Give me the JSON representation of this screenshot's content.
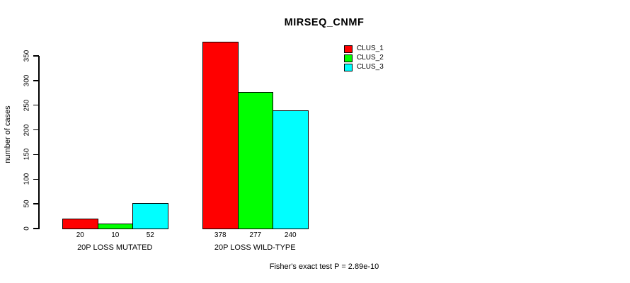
{
  "chart_data": {
    "type": "bar",
    "title": "MIRSEQ_CNMF",
    "ylabel": "number of cases",
    "xlabel": "",
    "categories": [
      "20P LOSS MUTATED",
      "20P LOSS WILD-TYPE"
    ],
    "series": [
      {
        "name": "CLUS_1",
        "color": "#ff0000",
        "values": [
          20,
          378
        ]
      },
      {
        "name": "CLUS_2",
        "color": "#00ff00",
        "values": [
          10,
          277
        ]
      },
      {
        "name": "CLUS_3",
        "color": "#00ffff",
        "values": [
          52,
          240
        ]
      }
    ],
    "bar_value_labels": [
      [
        "20",
        "10",
        "52"
      ],
      [
        "378",
        "277",
        "240"
      ]
    ],
    "yticks": [
      0,
      50,
      100,
      150,
      200,
      250,
      300,
      350
    ],
    "ylim": [
      0,
      378
    ],
    "grid": false,
    "legend_position": "top-right",
    "bar_border_color": "#000000",
    "annotation": "Fisher's exact test P = 2.89e-10"
  }
}
